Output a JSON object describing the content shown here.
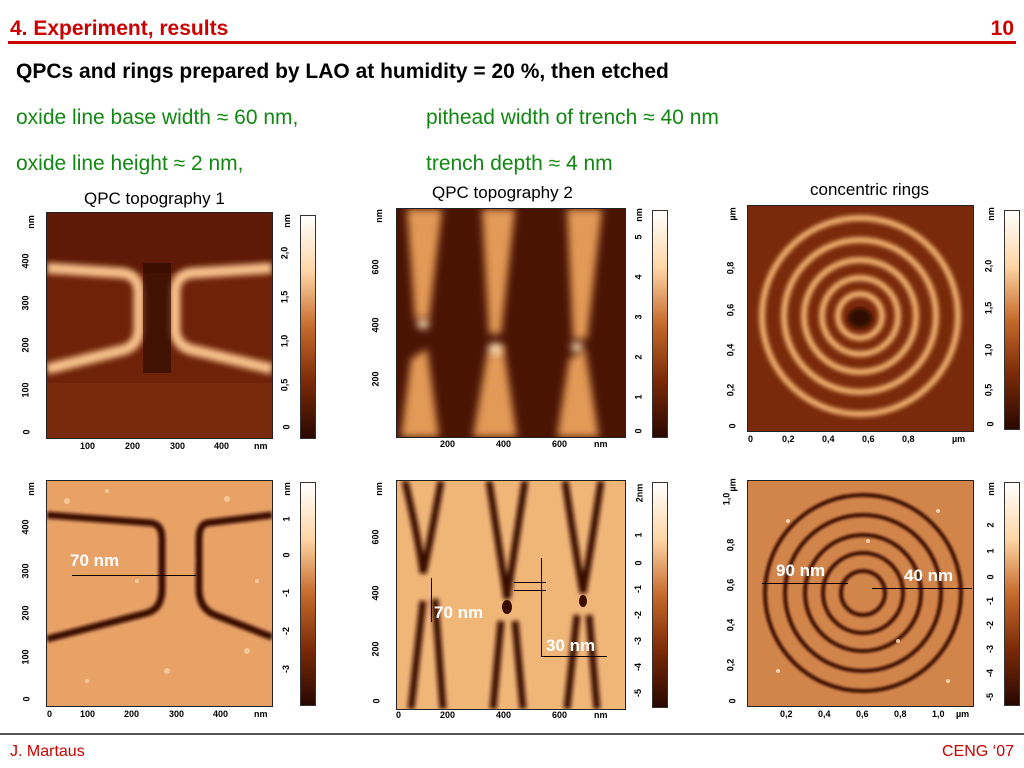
{
  "header": {
    "title": "4. Experiment, results",
    "page_number": "10"
  },
  "heading": "QPCs and rings prepared by LAO at humidity = 20 %, then etched",
  "params": {
    "row1_left": "oxide line base width ≈ 60 nm,",
    "row1_right": "pithead width of trench ≈ 40 nm",
    "row2_left": "oxide line height ≈ 2 nm,",
    "row2_right": "trench depth ≈ 4 nm"
  },
  "panels": {
    "qpc1": {
      "title": "QPC topography 1"
    },
    "qpc2": {
      "title": "QPC topography 2"
    },
    "rings": {
      "title": "concentric rings"
    }
  },
  "axes": {
    "nm": "nm",
    "um": "µm",
    "two_nm": "2nm",
    "p1_y": [
      "0",
      "100",
      "200",
      "300",
      "400"
    ],
    "p1_x": [
      "100",
      "200",
      "300",
      "400"
    ],
    "p1_scale": [
      "0",
      "0,5",
      "1,0",
      "1,5",
      "2,0"
    ],
    "p2_y": [
      "200",
      "400",
      "600"
    ],
    "p2_x": [
      "200",
      "400",
      "600"
    ],
    "p2_scale": [
      "0",
      "1",
      "2",
      "3",
      "4",
      "5"
    ],
    "p3_y": [
      "0",
      "0,2",
      "0,4",
      "0,6",
      "0,8"
    ],
    "p3_x": [
      "0",
      "0,2",
      "0,4",
      "0,6",
      "0,8"
    ],
    "p3_scale": [
      "0",
      "0,5",
      "1,0",
      "1,5",
      "2,0"
    ],
    "p4_y": [
      "0",
      "100",
      "200",
      "300",
      "400"
    ],
    "p4_x": [
      "0",
      "100",
      "200",
      "300",
      "400"
    ],
    "p4_scale": [
      "-3",
      "-2",
      "-1",
      "0",
      "1"
    ],
    "p5_y": [
      "0",
      "200",
      "400",
      "600"
    ],
    "p5_x": [
      "0",
      "200",
      "400",
      "600"
    ],
    "p5_scale": [
      "-5",
      "-4",
      "-3",
      "-2",
      "-1",
      "0",
      "1"
    ],
    "p6_y": [
      "0",
      "0,2",
      "0,4",
      "0,6",
      "0,8",
      "1,0"
    ],
    "p6_x": [
      "0,2",
      "0,4",
      "0,6",
      "0,8",
      "1,0"
    ],
    "p6_scale": [
      "-5",
      "-4",
      "-3",
      "-2",
      "-1",
      "0",
      "1",
      "2"
    ]
  },
  "annotations": {
    "p4_width": "70 nm",
    "p5_width": "70 nm",
    "p5_depth": "30 nm",
    "p6_left": "90 nm",
    "p6_right": "40 nm"
  },
  "footer": {
    "author": "J. Martaus",
    "conference": "CENG ‘07"
  },
  "colors": {
    "accent": "#cc0000",
    "params": "#118811",
    "afm_dark": "#3a1000",
    "afm_light": "#f2c48a"
  }
}
